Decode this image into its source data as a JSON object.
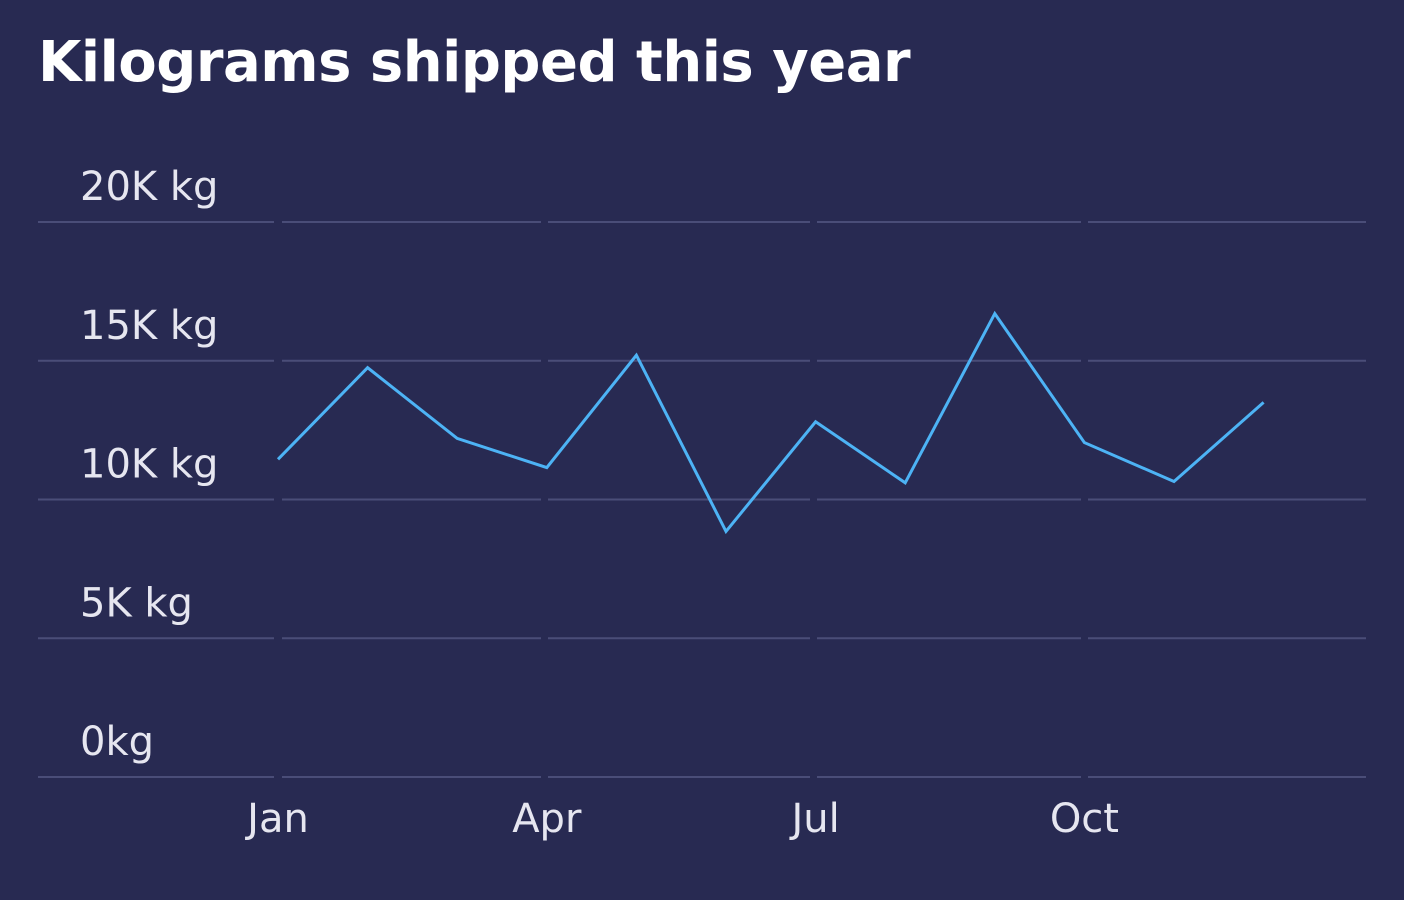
{
  "chart_data": {
    "type": "line",
    "title": "Kilograms shipped this year",
    "xlabel": "",
    "ylabel": "",
    "ylim": [
      0,
      20000
    ],
    "y_ticks": [
      "0kg",
      "5K kg",
      "10K kg",
      "15K kg",
      "20K kg"
    ],
    "y_tick_values": [
      0,
      5000,
      10000,
      15000,
      20000
    ],
    "x_ticks": [
      "Jan",
      "Apr",
      "Jul",
      "Oct"
    ],
    "x_tick_months": [
      0,
      3,
      6,
      9
    ],
    "grid": true,
    "series": [
      {
        "color": "#4db3f5",
        "x": [
          "Jan",
          "Feb",
          "Mar",
          "Apr",
          "May",
          "Jun",
          "Jul",
          "Aug",
          "Sep",
          "Oct",
          "Nov",
          "Dec"
        ],
        "values": [
          11450,
          14750,
          12200,
          11150,
          15200,
          8850,
          12800,
          10600,
          16700,
          12050,
          10650,
          13500
        ]
      }
    ]
  },
  "colors": {
    "background": "#282a52",
    "grid": "#4a4d78",
    "text": "#e6e6f0",
    "line": "#4db3f5"
  }
}
